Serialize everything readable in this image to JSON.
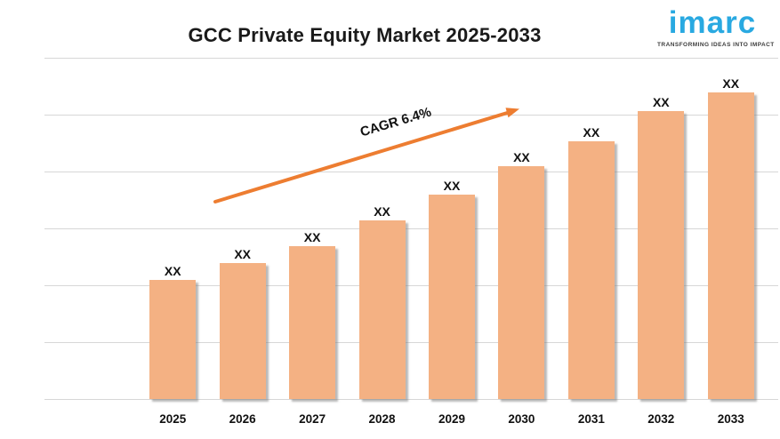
{
  "title": "GCC Private Equity Market 2025-2033",
  "logo": {
    "brand": "imarc",
    "tagline": "TRANSFORMING IDEAS INTO IMPACT",
    "brand_color": "#29A9E1"
  },
  "chart_data": {
    "type": "bar",
    "title": "GCC Private Equity Market 2025-2033",
    "categories": [
      "2025",
      "2026",
      "2027",
      "2028",
      "2029",
      "2030",
      "2031",
      "2032",
      "2033"
    ],
    "values": [
      "XX",
      "XX",
      "XX",
      "XX",
      "XX",
      "XX",
      "XX",
      "XX",
      "XX"
    ],
    "relative_heights_pct": [
      34.9,
      39.8,
      44.8,
      52.3,
      59.9,
      68.2,
      75.5,
      84.4,
      89.8
    ],
    "annotation": "CAGR  6.4%",
    "xlabel": "",
    "ylabel": "",
    "legend": "none",
    "grid": "horizontal",
    "gridline_count": 7,
    "bar_color": "#F4B183",
    "arrow_color": "#ED7D31",
    "grid_color": "#D7D7D7"
  }
}
